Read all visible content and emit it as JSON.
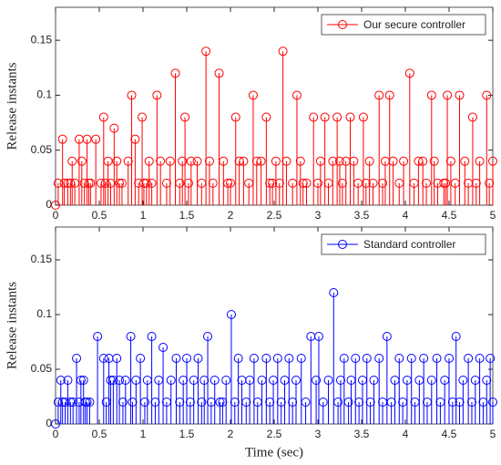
{
  "chart_data": [
    {
      "type": "stem",
      "ylabel": "Release instants",
      "xlim": [
        0,
        5
      ],
      "xticks": [
        0,
        0.5,
        1,
        1.5,
        2,
        2.5,
        3,
        3.5,
        4,
        4.5,
        5
      ],
      "ylim": [
        0,
        0.18
      ],
      "yticks": [
        0,
        0.05,
        0.1,
        0.15
      ],
      "legend": "northeast",
      "series": [
        {
          "name": "Our secure controller",
          "color": "#ff0000",
          "x": [
            0.0,
            0.03,
            0.08,
            0.1,
            0.14,
            0.17,
            0.19,
            0.22,
            0.27,
            0.3,
            0.33,
            0.36,
            0.38,
            0.4,
            0.46,
            0.52,
            0.55,
            0.57,
            0.6,
            0.63,
            0.67,
            0.7,
            0.73,
            0.76,
            0.83,
            0.87,
            0.91,
            0.95,
            0.99,
            1.01,
            1.04,
            1.07,
            1.1,
            1.16,
            1.2,
            1.27,
            1.31,
            1.37,
            1.42,
            1.45,
            1.48,
            1.52,
            1.55,
            1.62,
            1.67,
            1.72,
            1.76,
            1.8,
            1.87,
            1.92,
            1.97,
            2.0,
            2.06,
            2.1,
            2.15,
            2.21,
            2.26,
            2.3,
            2.35,
            2.41,
            2.45,
            2.48,
            2.52,
            2.56,
            2.6,
            2.64,
            2.71,
            2.76,
            2.8,
            2.83,
            2.87,
            2.95,
            3.0,
            3.03,
            3.08,
            3.12,
            3.17,
            3.22,
            3.25,
            3.28,
            3.32,
            3.37,
            3.41,
            3.46,
            3.52,
            3.55,
            3.59,
            3.63,
            3.7,
            3.74,
            3.77,
            3.82,
            3.86,
            3.93,
            3.98,
            4.05,
            4.1,
            4.15,
            4.2,
            4.24,
            4.3,
            4.33,
            4.37,
            4.44,
            4.46,
            4.48,
            4.52,
            4.57,
            4.62,
            4.68,
            4.72,
            4.77,
            4.81,
            4.85,
            4.93,
            4.96,
            5.0
          ],
          "values": [
            0,
            0.02,
            0.06,
            0.02,
            0.02,
            0.02,
            0.04,
            0.02,
            0.06,
            0.04,
            0.02,
            0.06,
            0.02,
            0.02,
            0.06,
            0.02,
            0.08,
            0.02,
            0.04,
            0.02,
            0.07,
            0.04,
            0.02,
            0.02,
            0.04,
            0.1,
            0.06,
            0.02,
            0.08,
            0.02,
            0.02,
            0.04,
            0.02,
            0.1,
            0.04,
            0.02,
            0.04,
            0.12,
            0.02,
            0.04,
            0.08,
            0.02,
            0.04,
            0.04,
            0.02,
            0.14,
            0.04,
            0.02,
            0.12,
            0.04,
            0.02,
            0.02,
            0.08,
            0.04,
            0.04,
            0.02,
            0.1,
            0.04,
            0.04,
            0.08,
            0.02,
            0.02,
            0.04,
            0.02,
            0.14,
            0.04,
            0.02,
            0.1,
            0.04,
            0.02,
            0.02,
            0.08,
            0.02,
            0.04,
            0.08,
            0.02,
            0.04,
            0.08,
            0.04,
            0.02,
            0.04,
            0.08,
            0.04,
            0.02,
            0.08,
            0.02,
            0.04,
            0.02,
            0.1,
            0.02,
            0.04,
            0.1,
            0.04,
            0.02,
            0.04,
            0.12,
            0.02,
            0.04,
            0.04,
            0.02,
            0.1,
            0.04,
            0.02,
            0.02,
            0.02,
            0.1,
            0.04,
            0.02,
            0.1,
            0.04,
            0.02,
            0.08,
            0.02,
            0.04,
            0.1,
            0.02,
            0.04
          ]
        }
      ]
    },
    {
      "type": "stem",
      "ylabel": "Release instants",
      "xlabel": "Time (sec)",
      "xlim": [
        0,
        5
      ],
      "xticks": [
        0,
        0.5,
        1,
        1.5,
        2,
        2.5,
        3,
        3.5,
        4,
        4.5,
        5
      ],
      "ylim": [
        0,
        0.18
      ],
      "yticks": [
        0,
        0.05,
        0.1,
        0.15
      ],
      "legend": "northeast",
      "series": [
        {
          "name": "Standard controller",
          "color": "#0000ff",
          "x": [
            0,
            0.03,
            0.06,
            0.08,
            0.11,
            0.14,
            0.17,
            0.2,
            0.24,
            0.27,
            0.29,
            0.32,
            0.34,
            0.36,
            0.39,
            0.48,
            0.55,
            0.58,
            0.61,
            0.63,
            0.66,
            0.7,
            0.73,
            0.77,
            0.8,
            0.86,
            0.88,
            0.92,
            0.97,
            1.02,
            1.05,
            1.1,
            1.14,
            1.18,
            1.23,
            1.27,
            1.32,
            1.38,
            1.42,
            1.46,
            1.5,
            1.54,
            1.58,
            1.63,
            1.67,
            1.7,
            1.74,
            1.78,
            1.82,
            1.88,
            1.91,
            1.95,
            2.01,
            2.05,
            2.09,
            2.13,
            2.18,
            2.22,
            2.27,
            2.31,
            2.36,
            2.41,
            2.45,
            2.49,
            2.54,
            2.58,
            2.62,
            2.67,
            2.71,
            2.75,
            2.81,
            2.86,
            2.92,
            2.98,
            3.01,
            3.06,
            3.12,
            3.18,
            3.23,
            3.26,
            3.3,
            3.35,
            3.38,
            3.43,
            3.47,
            3.51,
            3.56,
            3.6,
            3.64,
            3.7,
            3.74,
            3.79,
            3.84,
            3.88,
            3.93,
            3.97,
            4.02,
            4.07,
            4.11,
            4.16,
            4.21,
            4.25,
            4.3,
            4.36,
            4.4,
            4.45,
            4.5,
            4.54,
            4.58,
            4.62,
            4.66,
            4.72,
            4.76,
            4.8,
            4.85,
            4.89,
            4.93,
            4.97,
            5.0
          ],
          "values": [
            0,
            0.02,
            0.04,
            0.02,
            0.02,
            0.04,
            0.02,
            0.02,
            0.06,
            0.02,
            0.04,
            0.04,
            0.02,
            0.02,
            0.02,
            0.08,
            0.06,
            0.02,
            0.06,
            0.04,
            0.04,
            0.06,
            0.04,
            0.02,
            0.04,
            0.08,
            0.02,
            0.04,
            0.06,
            0.02,
            0.04,
            0.08,
            0.02,
            0.04,
            0.07,
            0.02,
            0.04,
            0.06,
            0.02,
            0.04,
            0.06,
            0.02,
            0.04,
            0.06,
            0.02,
            0.04,
            0.08,
            0.02,
            0.04,
            0.02,
            0.02,
            0.04,
            0.1,
            0.02,
            0.06,
            0.04,
            0.02,
            0.04,
            0.06,
            0.02,
            0.04,
            0.06,
            0.02,
            0.04,
            0.06,
            0.02,
            0.04,
            0.06,
            0.02,
            0.04,
            0.06,
            0.02,
            0.08,
            0.04,
            0.08,
            0.02,
            0.04,
            0.12,
            0.02,
            0.04,
            0.06,
            0.02,
            0.04,
            0.06,
            0.02,
            0.04,
            0.06,
            0.02,
            0.04,
            0.06,
            0.02,
            0.08,
            0.02,
            0.04,
            0.06,
            0.02,
            0.04,
            0.06,
            0.02,
            0.04,
            0.06,
            0.02,
            0.04,
            0.06,
            0.02,
            0.04,
            0.06,
            0.02,
            0.08,
            0.02,
            0.04,
            0.06,
            0.02,
            0.04,
            0.06,
            0.02,
            0.04,
            0.06,
            0.02
          ]
        }
      ]
    }
  ]
}
